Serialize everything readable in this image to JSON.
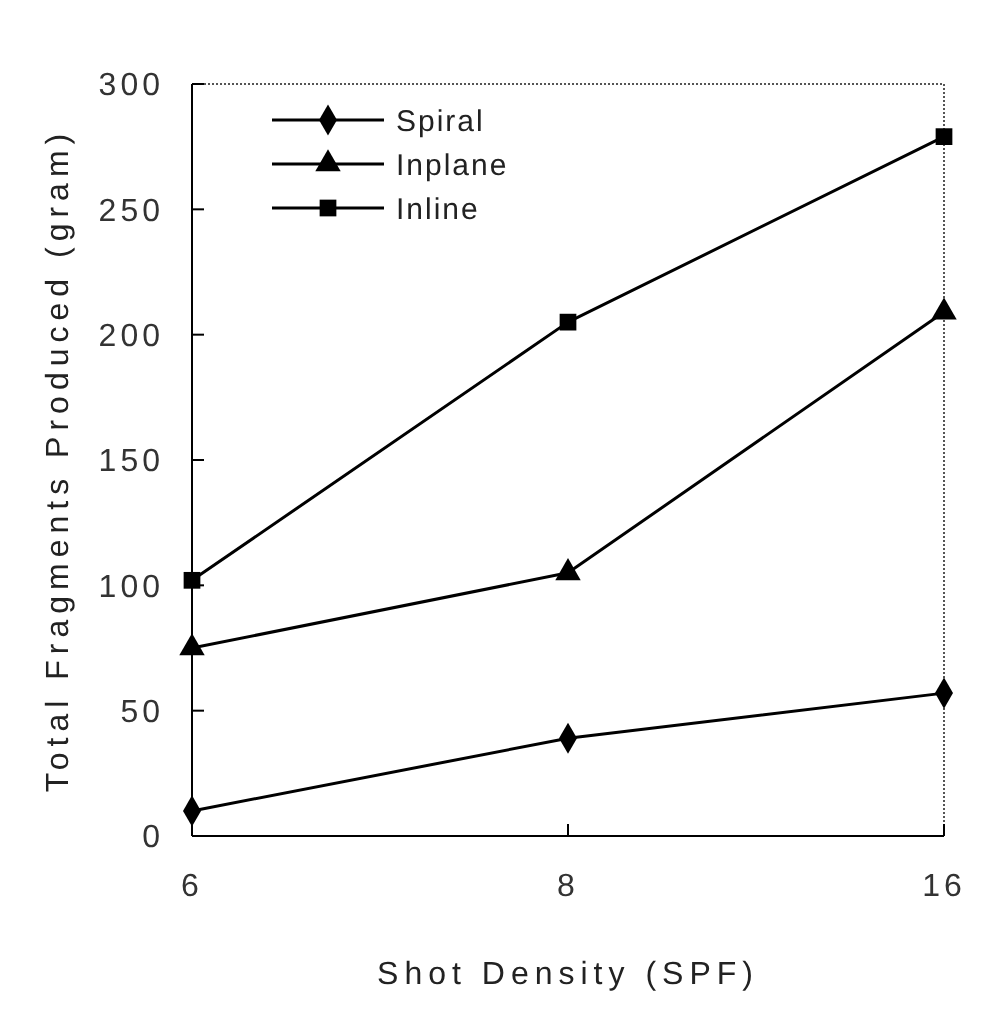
{
  "chart_data": {
    "type": "line",
    "xlabel": "Shot Density (SPF)",
    "ylabel": "Total Fragments Produced (gram)",
    "categories": [
      "6",
      "8",
      "16"
    ],
    "series": [
      {
        "name": "Spiral",
        "color": "#000000",
        "marker": "diamond",
        "values": [
          10,
          39,
          57
        ]
      },
      {
        "name": "Inplane",
        "color": "#000000",
        "marker": "triangle",
        "values": [
          75,
          105,
          209
        ]
      },
      {
        "name": "Inline",
        "color": "#000000",
        "marker": "square",
        "values": [
          102,
          205,
          279
        ]
      }
    ],
    "ylim": [
      0,
      300
    ],
    "yticks": [
      0,
      50,
      100,
      150,
      200,
      250,
      300
    ],
    "grid": false,
    "legend": "top left",
    "line_style": "solid"
  }
}
